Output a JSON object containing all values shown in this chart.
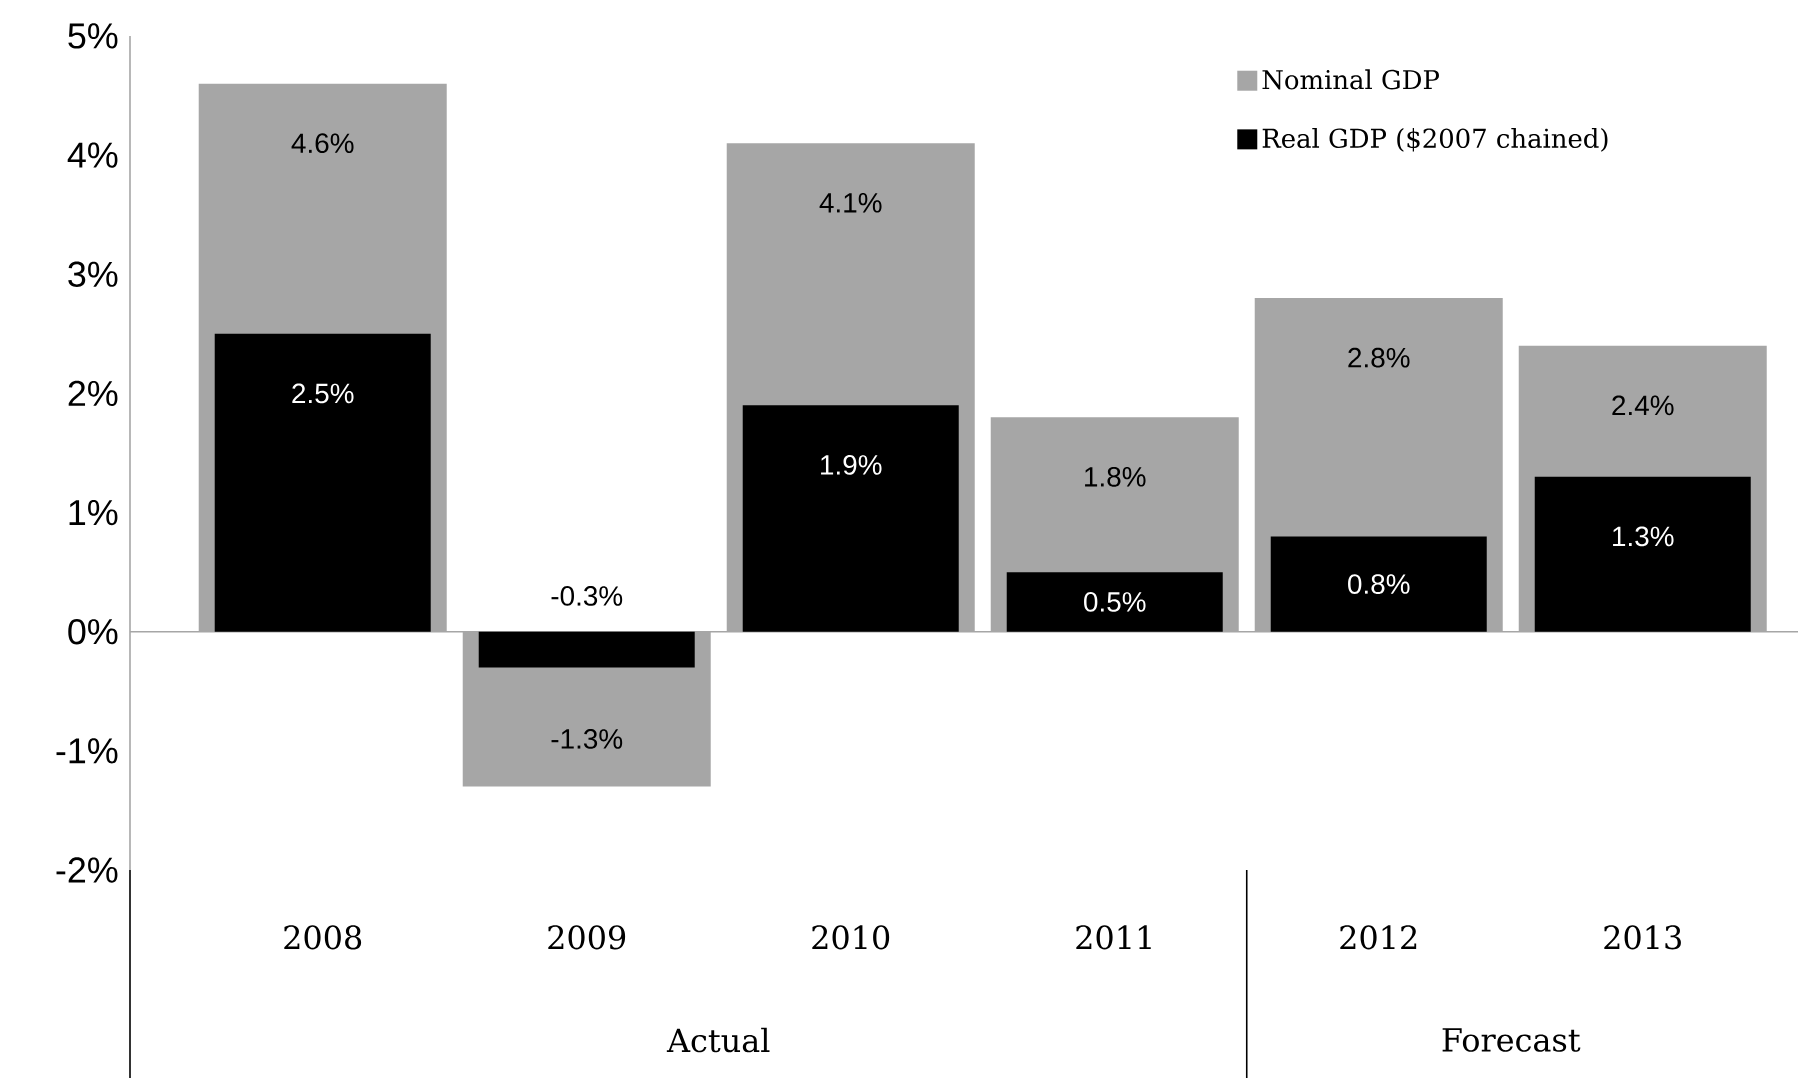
{
  "chart_data": {
    "type": "bar",
    "categories": [
      "2008",
      "2009",
      "2010",
      "2011",
      "2012",
      "2013"
    ],
    "series": [
      {
        "name": "Nominal GDP",
        "color": "#a6a6a6",
        "values": [
          4.6,
          -1.3,
          4.1,
          1.8,
          2.8,
          2.4
        ],
        "value_labels": [
          "4.6%",
          "-1.3%",
          "4.1%",
          "1.8%",
          "2.8%",
          "2.4%"
        ]
      },
      {
        "name": "Real GDP ($2007 chained)",
        "color": "#000000",
        "values": [
          2.5,
          -0.3,
          1.9,
          0.5,
          0.8,
          1.3
        ],
        "value_labels": [
          "2.5%",
          "-0.3%",
          "1.9%",
          "0.5%",
          "0.8%",
          "1.3%"
        ]
      }
    ],
    "ylim": [
      -2,
      5
    ],
    "yticks": [
      {
        "value": -2,
        "label": "-2%"
      },
      {
        "value": -1,
        "label": "-1%"
      },
      {
        "value": 0,
        "label": "0%"
      },
      {
        "value": 1,
        "label": "1%"
      },
      {
        "value": 2,
        "label": "2%"
      },
      {
        "value": 3,
        "label": "3%"
      },
      {
        "value": 4,
        "label": "4%"
      },
      {
        "value": 5,
        "label": "5%"
      }
    ],
    "legend": "top right",
    "annotations": [
      "Actual",
      "Forecast"
    ]
  }
}
